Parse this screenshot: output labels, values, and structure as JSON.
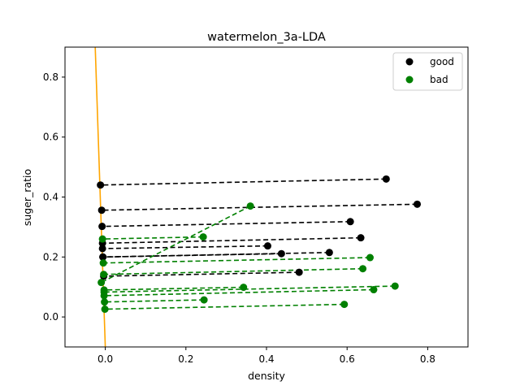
{
  "chart_data": {
    "type": "scatter",
    "title": "watermelon_3a-LDA",
    "xlabel": "density",
    "ylabel": "suger_ratio",
    "xlim": [
      -0.1,
      0.9
    ],
    "ylim": [
      -0.1,
      0.9
    ],
    "xticks": [
      0.0,
      0.2,
      0.4,
      0.6,
      0.8
    ],
    "yticks": [
      0.0,
      0.2,
      0.4,
      0.6,
      0.8
    ],
    "tick_labels_x": [
      "0.0",
      "0.2",
      "0.4",
      "0.6",
      "0.8"
    ],
    "tick_labels_y": [
      "0.0",
      "0.2",
      "0.4",
      "0.6",
      "0.8"
    ],
    "legend_position": "top-right",
    "projection_line": {
      "color": "#ffa500",
      "points": [
        [
          -0.025,
          0.9
        ],
        [
          0.0,
          -0.1
        ]
      ]
    },
    "series": [
      {
        "name": "good",
        "color": "#000000",
        "points": [
          {
            "x": 0.697,
            "y": 0.46,
            "px": -0.012,
            "py": 0.44
          },
          {
            "x": 0.774,
            "y": 0.376,
            "px": -0.009,
            "py": 0.356
          },
          {
            "x": 0.634,
            "y": 0.264,
            "px": -0.007,
            "py": 0.246
          },
          {
            "x": 0.608,
            "y": 0.318,
            "px": -0.008,
            "py": 0.302
          },
          {
            "x": 0.556,
            "y": 0.215,
            "px": -0.006,
            "py": 0.2
          },
          {
            "x": 0.403,
            "y": 0.237,
            "px": -0.007,
            "py": 0.228
          },
          {
            "x": 0.481,
            "y": 0.149,
            "px": -0.004,
            "py": 0.136
          },
          {
            "x": 0.437,
            "y": 0.211,
            "px": -0.006,
            "py": 0.2
          }
        ]
      },
      {
        "name": "bad",
        "color": "#008000",
        "points": [
          {
            "x": 0.666,
            "y": 0.091,
            "px": -0.003,
            "py": 0.071
          },
          {
            "x": 0.243,
            "y": 0.267,
            "px": -0.007,
            "py": 0.26
          },
          {
            "x": 0.245,
            "y": 0.057,
            "px": -0.002,
            "py": 0.05
          },
          {
            "x": 0.343,
            "y": 0.099,
            "px": -0.003,
            "py": 0.09
          },
          {
            "x": 0.639,
            "y": 0.161,
            "px": -0.004,
            "py": 0.142
          },
          {
            "x": 0.657,
            "y": 0.198,
            "px": -0.005,
            "py": 0.18
          },
          {
            "x": 0.36,
            "y": 0.37,
            "px": -0.01,
            "py": 0.115
          },
          {
            "x": 0.593,
            "y": 0.042,
            "px": -0.001,
            "py": 0.026
          },
          {
            "x": 0.719,
            "y": 0.103,
            "px": -0.003,
            "py": 0.083
          }
        ]
      }
    ]
  }
}
